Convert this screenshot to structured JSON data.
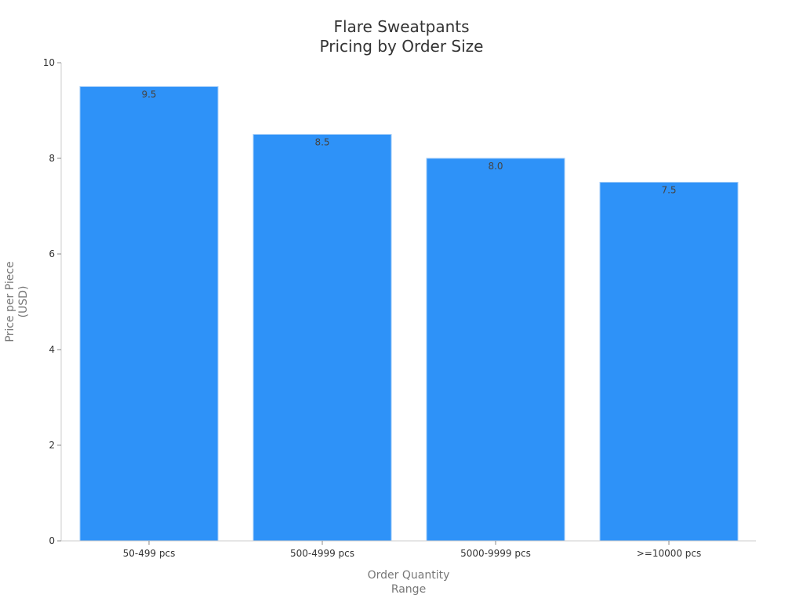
{
  "chart_data": {
    "type": "bar",
    "title": [
      "Flare Sweatpants",
      "Pricing by Order Size"
    ],
    "xlabel": [
      "Order Quantity",
      "Range"
    ],
    "ylabel": [
      "Price per Piece",
      "(USD)"
    ],
    "categories": [
      "50-499 pcs",
      "500-4999 pcs",
      "5000-9999 pcs",
      ">=10000 pcs"
    ],
    "values": [
      9.5,
      8.5,
      8.0,
      7.5
    ],
    "value_labels": [
      "9.5",
      "8.5",
      "8.0",
      "7.5"
    ],
    "ylim": [
      0,
      10
    ],
    "yticks": [
      0,
      2,
      4,
      6,
      8,
      10
    ],
    "ytick_labels": [
      "0",
      "2",
      "4",
      "6",
      "8",
      "10"
    ],
    "grid": false,
    "legend": "none",
    "bar_color": "#2E92F8",
    "bar_edge_color": "#9FCBF8"
  }
}
